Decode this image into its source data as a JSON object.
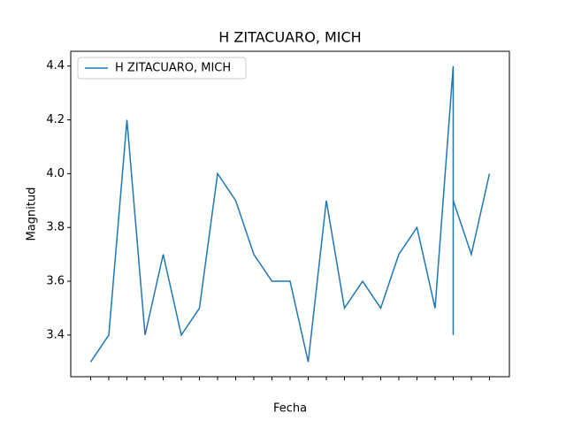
{
  "chart_data": {
    "type": "line",
    "title": "H ZITACUARO, MICH",
    "x_label": "Fecha",
    "y_label": "Magnitud",
    "categories": [
      null,
      null,
      null,
      null,
      null,
      null,
      null,
      null,
      null,
      null,
      null,
      null,
      null,
      null,
      null,
      null,
      null,
      null,
      null,
      null,
      null,
      null,
      null
    ],
    "x": [
      0,
      1,
      2,
      3,
      4,
      5,
      6,
      7,
      8,
      9,
      10,
      11,
      12,
      13,
      14,
      15,
      16,
      17,
      18,
      19,
      20,
      20,
      20,
      21,
      22
    ],
    "series": [
      {
        "name": "H ZITACUARO, MICH",
        "color": "#1f77b4",
        "values": [
          3.3,
          3.4,
          4.2,
          3.4,
          3.7,
          3.4,
          3.5,
          4.0,
          3.9,
          3.7,
          3.6,
          3.6,
          3.3,
          3.9,
          3.5,
          3.6,
          3.5,
          3.7,
          3.8,
          3.5,
          4.4,
          3.4,
          3.9,
          3.7,
          4.0
        ]
      }
    ],
    "xlim": [
      -1.1,
      23.1
    ],
    "ylim": [
      3.245,
      4.455
    ],
    "yticks": [
      3.4,
      3.6,
      3.8,
      {
        "value": 4,
        "label": "4.0"
      },
      4.2,
      4.4
    ],
    "legend": "upper left",
    "grid": false
  }
}
